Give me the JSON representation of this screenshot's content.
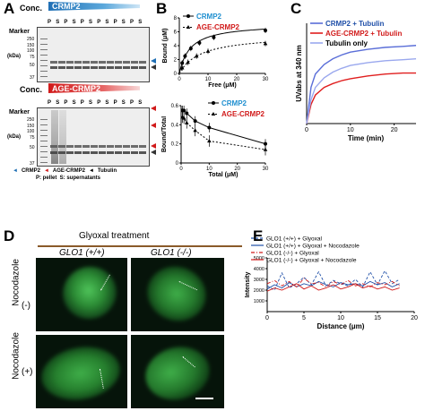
{
  "panels": {
    "A": "A",
    "B": "B",
    "C": "C",
    "D": "D",
    "E": "E"
  },
  "gel1": {
    "conc_label": "Conc.",
    "protein": "CRMP2",
    "marker_label": "Marker",
    "kda_label": "(kDa)",
    "marker_values": [
      "250",
      "150",
      "100",
      "75",
      "50",
      "37"
    ],
    "lane_labels": [
      "P",
      "S",
      "P",
      "S",
      "P",
      "S",
      "P",
      "S",
      "P",
      "S",
      "P",
      "S"
    ]
  },
  "gel2": {
    "conc_label": "Conc.",
    "protein": "AGE-CRMP2",
    "marker_label": "Marker",
    "kda_label": "(kDa)",
    "marker_values": [
      "250",
      "150",
      "100",
      "75",
      "50",
      "37"
    ],
    "lane_labels": [
      "P",
      "S",
      "P",
      "S",
      "P",
      "S",
      "P",
      "S",
      "P",
      "S",
      "P",
      "S"
    ]
  },
  "legend_a": {
    "crmp2": "CRMP2",
    "age_crmp2": "AGE-CRMP2",
    "tubulin": "Tubulin",
    "note": "P: pellet  S: supernatants"
  },
  "b_top": {
    "ylabel": "Bound (μM)",
    "xlabel": "Free (μM)",
    "legend": [
      "CRMP2",
      "AGE-CRMP2"
    ],
    "yticks": [
      "0",
      "2",
      "4",
      "6",
      "8"
    ],
    "xticks": [
      "0",
      "10",
      "20",
      "30"
    ]
  },
  "b_bottom": {
    "ylabel": "Bound/Total",
    "xlabel": "Total (μM)",
    "legend": [
      "CRMP2",
      "AGE-CRMP2"
    ],
    "yticks": [
      "0",
      "0.2",
      "0.4",
      "0.6"
    ],
    "xticks": [
      "0",
      "10",
      "20",
      "30"
    ]
  },
  "c": {
    "ylabel": "UVabs at 340 nm",
    "xlabel": "Time (min)",
    "legend": [
      "CRMP2 + Tubulin",
      "AGE-CRMP2 + Tubulin",
      "Tubulin only"
    ],
    "xticks": [
      "0",
      "10",
      "20"
    ]
  },
  "d": {
    "treatment": "Glyoxal treatment",
    "col1": "GLO1 (+/+)",
    "col2": "GLO1 (-/-)",
    "row_label": "Nocodazole",
    "row1": "(-)",
    "row2": "(+)"
  },
  "e": {
    "ylabel": "Intensity",
    "xlabel": "Distance (μm)",
    "yticks": [
      "1000",
      "2000",
      "3000",
      "4000",
      "5000"
    ],
    "xticks": [
      "0",
      "5",
      "10",
      "15",
      "20"
    ],
    "legend": [
      "GLO1 (+/+) + Glyoxal",
      "GLO1 (+/+) + Glyoxal + Nocodazole",
      "GLO1 (-/-) + Glyoxal",
      "GLO1 (-/-) + Glyoxal + Nocodazole"
    ]
  },
  "colors": {
    "blue": "#1f6fb5",
    "red": "#d11a1a",
    "green": "#2e9a3a",
    "cyan": "#1f8fd0"
  },
  "chart_data": [
    {
      "type": "scatter",
      "title": "",
      "xlabel": "Free (μM)",
      "ylabel": "Bound (μM)",
      "xlim": [
        0,
        30
      ],
      "ylim": [
        0,
        8
      ],
      "series": [
        {
          "name": "CRMP2",
          "x": [
            1,
            2,
            4,
            7,
            12,
            30
          ],
          "y": [
            1.5,
            2.5,
            3.6,
            4.4,
            5.2,
            6.2
          ]
        },
        {
          "name": "AGE-CRMP2",
          "x": [
            1,
            3,
            6,
            10,
            30
          ],
          "y": [
            0.8,
            1.6,
            2.5,
            3.2,
            4.3
          ]
        }
      ]
    },
    {
      "type": "scatter",
      "title": "",
      "xlabel": "Total (μM)",
      "ylabel": "Bound/Total",
      "xlim": [
        0,
        30
      ],
      "ylim": [
        0,
        0.6
      ],
      "series": [
        {
          "name": "CRMP2",
          "x": [
            0.5,
            1,
            2,
            5,
            10,
            30
          ],
          "y": [
            0.55,
            0.55,
            0.52,
            0.44,
            0.37,
            0.2
          ]
        },
        {
          "name": "AGE-CRMP2",
          "x": [
            0.5,
            1,
            2,
            5,
            10,
            30
          ],
          "y": [
            0.48,
            0.47,
            0.42,
            0.34,
            0.23,
            0.14
          ]
        }
      ]
    },
    {
      "type": "line",
      "title": "",
      "xlabel": "Time (min)",
      "ylabel": "UVabs at 340 nm",
      "xlim": [
        0,
        25
      ],
      "series": [
        {
          "name": "CRMP2 + Tubulin",
          "x": [
            0,
            1,
            2,
            4,
            6,
            8,
            10,
            14,
            18,
            22,
            25
          ],
          "y": [
            0,
            0.38,
            0.52,
            0.62,
            0.68,
            0.72,
            0.75,
            0.78,
            0.8,
            0.81,
            0.82
          ]
        },
        {
          "name": "AGE-CRMP2 + Tubulin",
          "x": [
            0,
            1,
            2,
            4,
            6,
            8,
            10,
            14,
            18,
            22,
            25
          ],
          "y": [
            0,
            0.2,
            0.3,
            0.38,
            0.42,
            0.45,
            0.47,
            0.5,
            0.52,
            0.53,
            0.53
          ]
        },
        {
          "name": "Tubulin only",
          "x": [
            0,
            1,
            2,
            4,
            6,
            8,
            10,
            14,
            18,
            22,
            25
          ],
          "y": [
            0,
            0.25,
            0.38,
            0.48,
            0.54,
            0.58,
            0.61,
            0.64,
            0.66,
            0.67,
            0.68
          ]
        }
      ]
    },
    {
      "type": "line",
      "title": "",
      "xlabel": "Distance (μm)",
      "ylabel": "Intensity",
      "xlim": [
        0,
        20
      ],
      "ylim": [
        0,
        5000
      ],
      "series": [
        {
          "name": "GLO1 (+/+) + Glyoxal",
          "x": [
            0,
            1,
            2,
            3,
            4,
            5,
            6,
            7,
            8,
            9,
            10,
            11,
            12,
            13,
            14,
            15,
            16,
            17,
            18
          ],
          "y": [
            2400,
            2000,
            3600,
            2200,
            2600,
            3200,
            2500,
            3700,
            2400,
            2900,
            2600,
            2400,
            3000,
            2300,
            3700,
            2500,
            3800,
            2600,
            3000
          ]
        },
        {
          "name": "GLO1 (+/+) + Glyoxal + Nocodazole",
          "x": [
            0,
            1,
            2,
            3,
            4,
            5,
            6,
            7,
            8,
            9,
            10,
            11,
            12,
            13,
            14,
            15,
            16,
            17,
            18
          ],
          "y": [
            2100,
            2500,
            2200,
            2700,
            2300,
            2600,
            2400,
            2800,
            2500,
            2300,
            2700,
            2500,
            2600,
            2400,
            2800,
            2500,
            2700,
            2300,
            2600
          ]
        },
        {
          "name": "GLO1 (-/-) + Glyoxal",
          "x": [
            0,
            1,
            2,
            3,
            4,
            5,
            6,
            7,
            8,
            9,
            10,
            11,
            12,
            13,
            14,
            15,
            16,
            17,
            18
          ],
          "y": [
            2600,
            2900,
            2400,
            2800,
            2300,
            3100,
            2600,
            2700,
            2300,
            2800,
            2500,
            2900,
            2400,
            2600,
            2300,
            2700,
            2500,
            2800,
            2400
          ]
        },
        {
          "name": "GLO1 (-/-) + Glyoxal + Nocodazole",
          "x": [
            0,
            1,
            2,
            3,
            4,
            5,
            6,
            7,
            8,
            9,
            10,
            11,
            12,
            13,
            14,
            15,
            16,
            17,
            18
          ],
          "y": [
            1900,
            2200,
            2000,
            2300,
            2600,
            2100,
            2400,
            2000,
            2200,
            2500,
            2100,
            2300,
            2600,
            2200,
            2400,
            2100,
            2300,
            2000,
            2200
          ]
        }
      ]
    }
  ]
}
